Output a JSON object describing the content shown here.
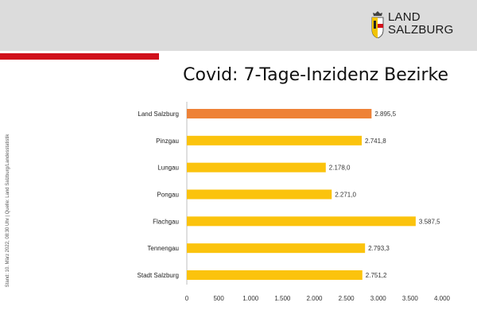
{
  "header": {
    "logo_line1": "LAND",
    "logo_line2": "SALZBURG",
    "logo_icon": "salzburg-coat-of-arms-icon"
  },
  "title": "Covid: 7-Tage-Inzidenz Bezirke",
  "source": "Stand: 10. März 2022, 08:30 Uhr | Quelle: Land Salzburg/Landesstatistik",
  "colors": {
    "header_bg": "#dcdcdc",
    "accent_red": "#d0101b",
    "bar_highlight": "#ee8237",
    "bar_default": "#fbc30d",
    "axis": "#bfbfbf"
  },
  "chart_data": {
    "type": "bar",
    "orientation": "horizontal",
    "title": "Covid: 7-Tage-Inzidenz Bezirke",
    "xlabel": "",
    "ylabel": "",
    "xlim": [
      0,
      4000
    ],
    "ticks": [
      0,
      500,
      1000,
      1500,
      2000,
      2500,
      3000,
      3500,
      4000
    ],
    "tick_labels": [
      "0",
      "500",
      "1.000",
      "1.500",
      "2.000",
      "2.500",
      "3.000",
      "3.500",
      "4.000"
    ],
    "grid": false,
    "categories": [
      "Land Salzburg",
      "Pinzgau",
      "Lungau",
      "Pongau",
      "Flachgau",
      "Tennengau",
      "Stadt Salzburg"
    ],
    "values": [
      2895.5,
      2741.8,
      2178.0,
      2271.0,
      3587.5,
      2793.3,
      2751.2
    ],
    "value_labels": [
      "2.895,5",
      "2.741,8",
      "2.178,0",
      "2.271,0",
      "3.587,5",
      "2.793,3",
      "2.751,2"
    ],
    "highlight_index": 0
  }
}
